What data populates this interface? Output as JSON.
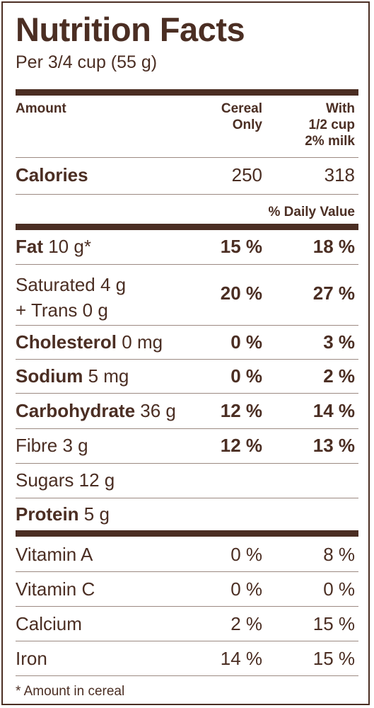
{
  "title": "Nutrition Facts",
  "serving": "Per 3/4 cup (55 g)",
  "header": {
    "amount": "Amount",
    "col1_line1": "Cereal",
    "col1_line2": "Only",
    "col2_line1": "With",
    "col2_line2": "1/2 cup",
    "col2_line3": "2% milk"
  },
  "calories": {
    "label": "Calories",
    "col1": "250",
    "col2": "318"
  },
  "daily_value_label": "% Daily Value",
  "nutrients": {
    "fat": {
      "name": "Fat",
      "amount": " 10 g*",
      "col1": "15 %",
      "col2": "18 %"
    },
    "saturated": {
      "line1": "Saturated 4 g",
      "line2": "+ Trans 0 g",
      "col1": "20 %",
      "col2": "27 %"
    },
    "cholesterol": {
      "name": "Cholesterol",
      "amount": " 0 mg",
      "col1": "0 %",
      "col2": "3 %"
    },
    "sodium": {
      "name": "Sodium",
      "amount": " 5 mg",
      "col1": "0 %",
      "col2": "2 %"
    },
    "carbohydrate": {
      "name": "Carbohydrate",
      "amount": " 36 g",
      "col1": "12 %",
      "col2": "14 %"
    },
    "fibre": {
      "label": "Fibre 3 g",
      "col1": "12 %",
      "col2": "13 %"
    },
    "sugars": {
      "label": "Sugars 12 g"
    },
    "protein": {
      "name": "Protein",
      "amount": " 5 g"
    }
  },
  "vitamins": {
    "vitamin_a": {
      "label": "Vitamin A",
      "col1": "0 %",
      "col2": "8 %"
    },
    "vitamin_c": {
      "label": "Vitamin C",
      "col1": "0 %",
      "col2": "0 %"
    },
    "calcium": {
      "label": "Calcium",
      "col1": "2 %",
      "col2": "15 %"
    },
    "iron": {
      "label": "Iron",
      "col1": "14 %",
      "col2": "15 %"
    }
  },
  "footnote": "* Amount in cereal",
  "colors": {
    "text": "#4b2e23",
    "rule": "#4b2e23",
    "thin_rule": "#9c8a82",
    "background": "#ffffff"
  }
}
